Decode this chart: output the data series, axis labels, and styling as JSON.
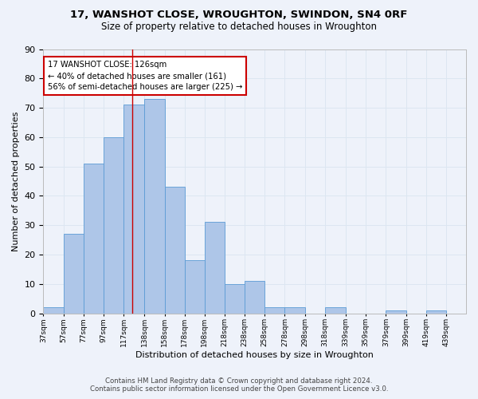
{
  "title": "17, WANSHOT CLOSE, WROUGHTON, SWINDON, SN4 0RF",
  "subtitle": "Size of property relative to detached houses in Wroughton",
  "xlabel": "Distribution of detached houses by size in Wroughton",
  "ylabel": "Number of detached properties",
  "bin_labels": [
    "37sqm",
    "57sqm",
    "77sqm",
    "97sqm",
    "117sqm",
    "138sqm",
    "158sqm",
    "178sqm",
    "198sqm",
    "218sqm",
    "238sqm",
    "258sqm",
    "278sqm",
    "298sqm",
    "318sqm",
    "339sqm",
    "359sqm",
    "379sqm",
    "399sqm",
    "419sqm",
    "439sqm"
  ],
  "bin_edges": [
    37,
    57,
    77,
    97,
    117,
    138,
    158,
    178,
    198,
    218,
    238,
    258,
    278,
    298,
    318,
    339,
    359,
    379,
    399,
    419,
    439
  ],
  "bar_heights": [
    2,
    27,
    51,
    60,
    71,
    73,
    43,
    18,
    31,
    10,
    11,
    2,
    2,
    0,
    2,
    0,
    0,
    1,
    0,
    1,
    0
  ],
  "bar_color": "#aec6e8",
  "bar_edge_color": "#5b9bd5",
  "grid_color": "#dce6f1",
  "property_line_x": 126,
  "annotation_text": "17 WANSHOT CLOSE: 126sqm\n← 40% of detached houses are smaller (161)\n56% of semi-detached houses are larger (225) →",
  "annotation_box_color": "#ffffff",
  "annotation_box_edge": "#cc0000",
  "vline_color": "#cc0000",
  "footer_line1": "Contains HM Land Registry data © Crown copyright and database right 2024.",
  "footer_line2": "Contains public sector information licensed under the Open Government Licence v3.0.",
  "ylim": [
    0,
    90
  ],
  "yticks": [
    0,
    10,
    20,
    30,
    40,
    50,
    60,
    70,
    80,
    90
  ],
  "background_color": "#eef2fa"
}
